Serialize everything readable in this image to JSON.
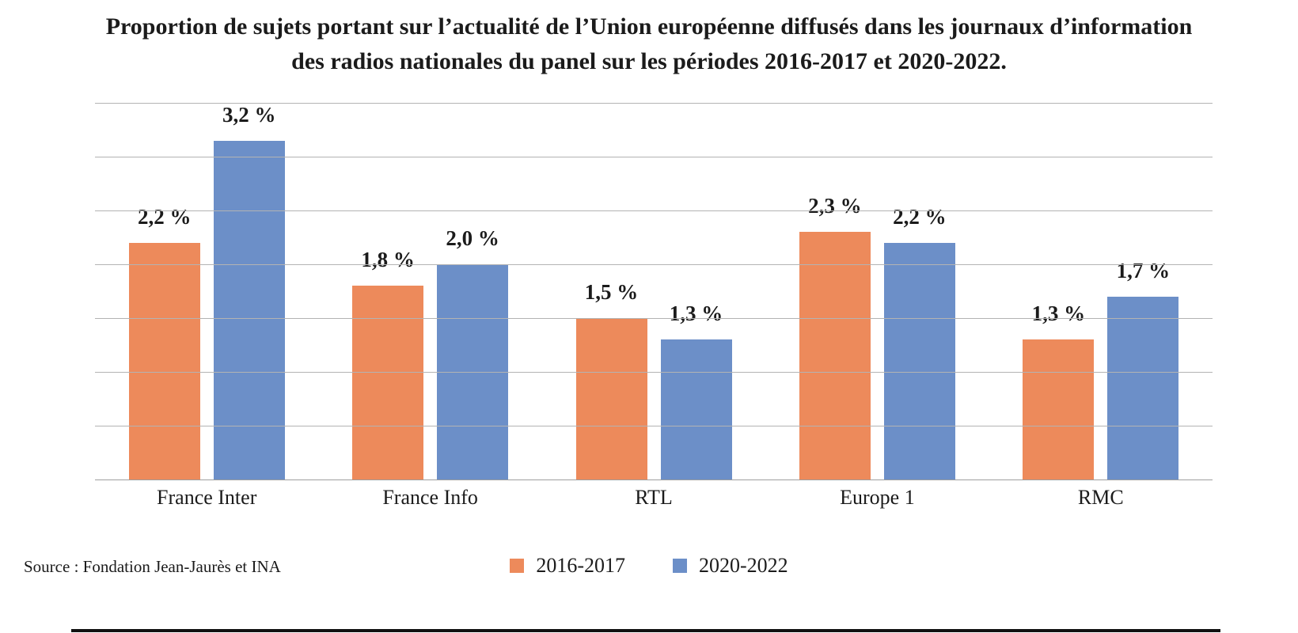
{
  "title_lines": [
    "Proportion de sujets portant sur l’actualité de l’Union européenne diffusés dans les journaux d’information",
    "des radios nationales du panel sur les périodes 2016-2017 et 2020-2022."
  ],
  "source": "Source : Fondation Jean-Jaurès et INA",
  "colors": {
    "series1": "#ed8a5b",
    "series2": "#6c8fc8",
    "gridline": "#b3b3b3"
  },
  "chart_data": {
    "type": "bar",
    "title": "Proportion de sujets portant sur l’actualité de l’Union européenne diffusés dans les journaux d’information des radios nationales du panel sur les périodes 2016-2017 et 2020-2022.",
    "categories": [
      "France Inter",
      "France Info",
      "RTL",
      "Europe 1",
      "RMC"
    ],
    "series": [
      {
        "name": "2016-2017",
        "color": "#ed8a5b",
        "values": [
          2.2,
          1.8,
          1.5,
          2.3,
          1.3
        ],
        "labels": [
          "2,2 %",
          "1,8 %",
          "1,5 %",
          "2,3 %",
          "1,3 %"
        ]
      },
      {
        "name": "2020-2022",
        "color": "#6c8fc8",
        "values": [
          3.2,
          2.0,
          1.3,
          2.2,
          1.7
        ],
        "labels": [
          "3,2 %",
          "2,0 %",
          "1,3 %",
          "2,2 %",
          "1,7 %"
        ]
      }
    ],
    "xlabel": "",
    "ylabel": "",
    "ylim": [
      0,
      3.5
    ],
    "grid_step": 0.5,
    "grid": true,
    "legend_position": "bottom"
  }
}
